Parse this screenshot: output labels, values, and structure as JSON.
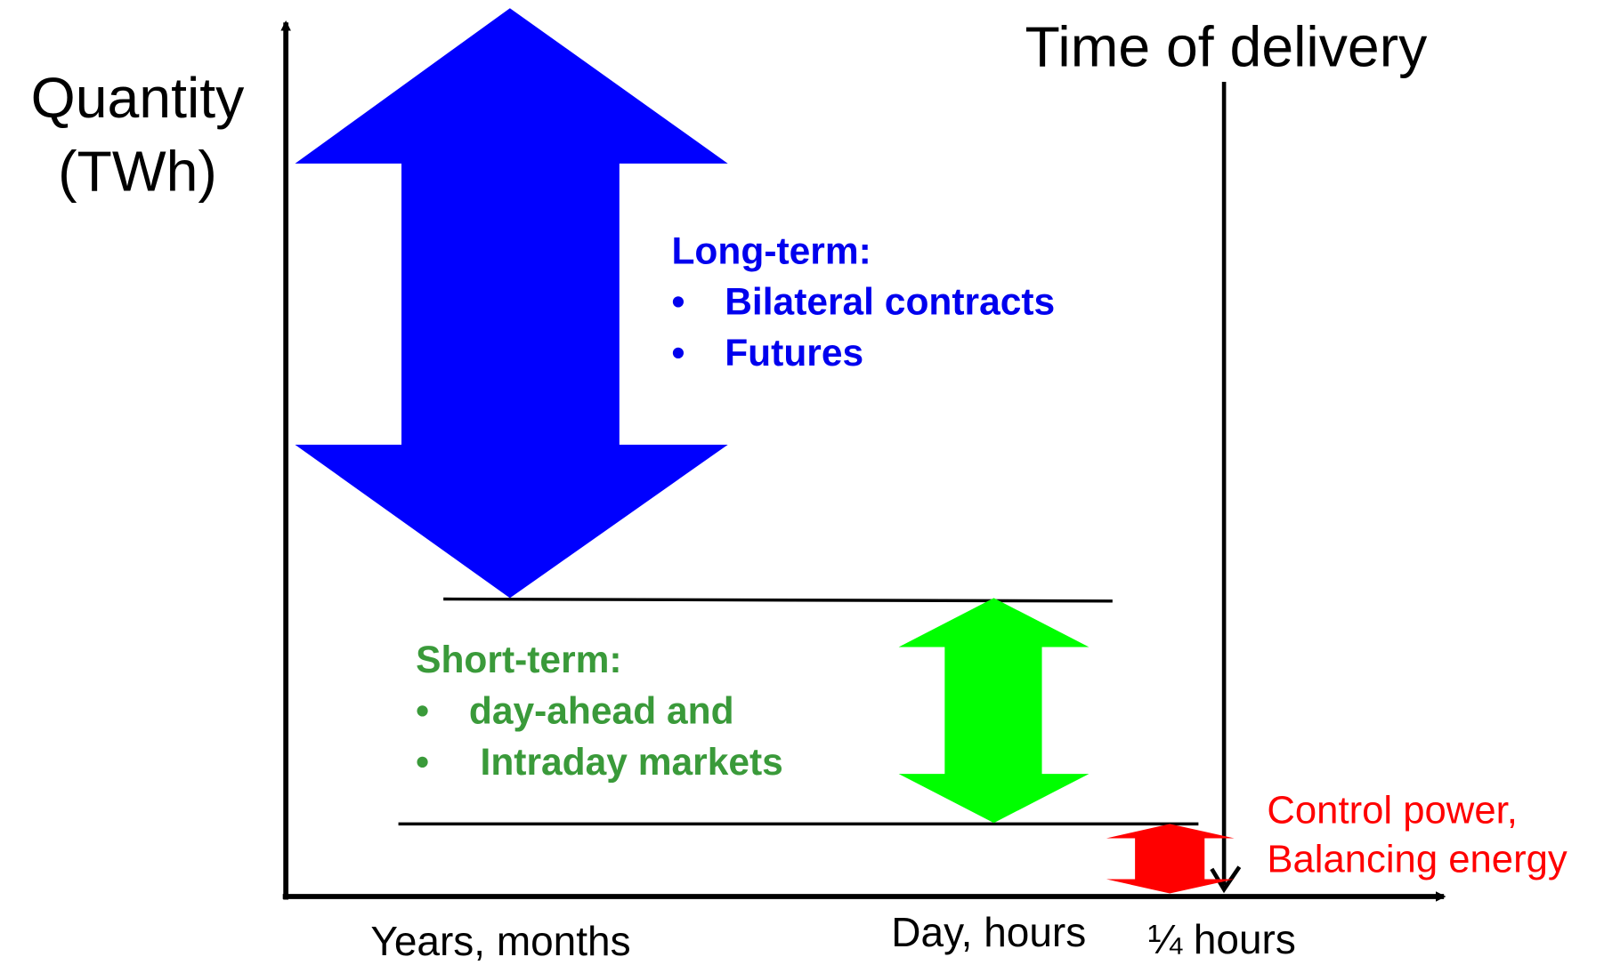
{
  "axes": {
    "y_label": [
      "Quantity",
      "(TWh)"
    ],
    "time_label": "Time of delivery",
    "x_labels": [
      "Years, months",
      "Day, hours",
      "¼ hours"
    ]
  },
  "bullet": "•",
  "long_term": {
    "heading": "Long-term:",
    "items": [
      "Bilateral contracts",
      "Futures"
    ]
  },
  "short_term": {
    "heading": "Short-term:",
    "items": [
      "day-ahead and",
      "Intraday markets"
    ]
  },
  "control": {
    "lines": [
      "Control power,",
      "Balancing energy"
    ]
  }
}
